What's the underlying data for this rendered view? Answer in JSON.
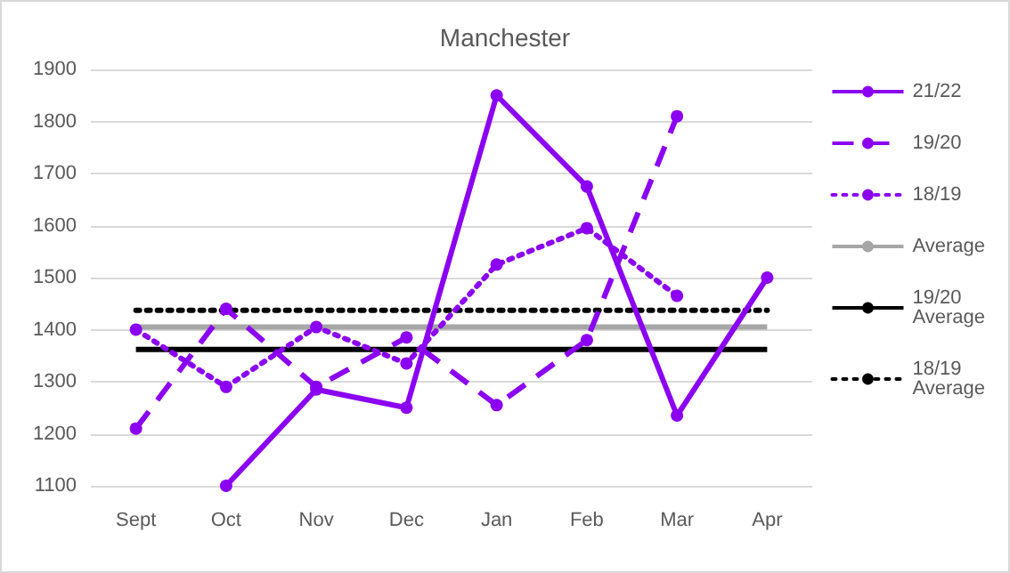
{
  "chart_data": {
    "type": "line",
    "title": "Manchester",
    "categories": [
      "Sept",
      "Oct",
      "Nov",
      "Dec",
      "Jan",
      "Feb",
      "Mar",
      "Apr"
    ],
    "series": [
      {
        "name": "21/22",
        "color": "#8b00f0",
        "line_style": "solid",
        "marker": "circle",
        "values": [
          null,
          1100,
          1285,
          1250,
          1850,
          1675,
          1235,
          1500
        ]
      },
      {
        "name": "19/20",
        "color": "#8b00f0",
        "line_style": "dashed",
        "marker": "circle",
        "values": [
          1210,
          1440,
          1290,
          1385,
          1255,
          1380,
          1810,
          null
        ]
      },
      {
        "name": "18/19",
        "color": "#8b00f0",
        "line_style": "dotted",
        "marker": "circle",
        "values": [
          1400,
          1290,
          1405,
          1335,
          1525,
          1595,
          1465,
          null
        ]
      },
      {
        "name": "Average",
        "color": "#a6a6a6",
        "line_style": "solid",
        "marker": "none",
        "values": [
          1405,
          1405,
          1405,
          1405,
          1405,
          1405,
          1405,
          1405
        ]
      },
      {
        "name": "19/20 Average",
        "color": "#000000",
        "line_style": "solid",
        "marker": "none",
        "values": [
          1362,
          1362,
          1362,
          1362,
          1362,
          1362,
          1362,
          1362
        ]
      },
      {
        "name": "18/19 Average",
        "color": "#000000",
        "line_style": "dotted",
        "marker": "none",
        "values": [
          1437,
          1437,
          1437,
          1437,
          1437,
          1437,
          1437,
          1437
        ]
      }
    ],
    "ylim": [
      1100,
      1900
    ],
    "yticks": [
      1100,
      1200,
      1300,
      1400,
      1500,
      1600,
      1700,
      1800,
      1900
    ],
    "grid": "y",
    "legend": "right"
  }
}
